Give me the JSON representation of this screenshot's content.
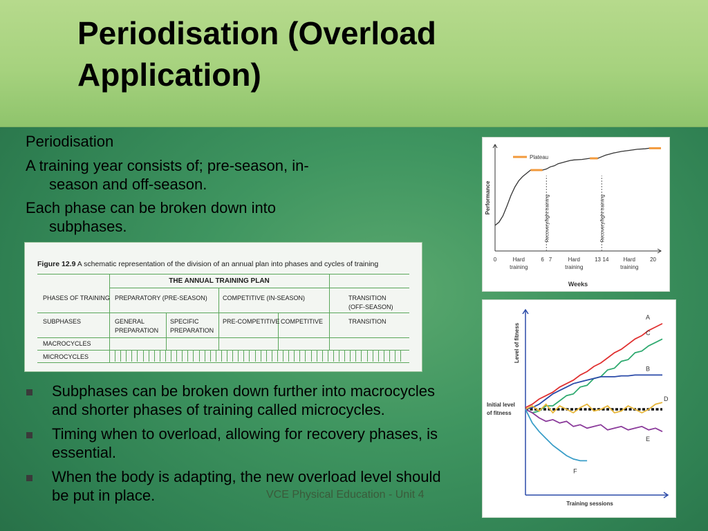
{
  "slide": {
    "title": "Periodisation (Overload Application)",
    "intro_heading": "Periodisation",
    "intro_points": [
      {
        "first": "A training year consists of; pre-season, in-",
        "second": "season and off-season."
      },
      {
        "first": "Each phase can be broken down into",
        "second": "subphases."
      }
    ],
    "bullets": [
      "Subphases can be broken down further into macrocycles and shorter phases of training called microcycles.",
      "Timing when to overload, allowing for recovery phases, is essential.",
      "When the body is adapting, the new overload level should be put in place."
    ],
    "footer": "VCE Physical Education - Unit 4"
  },
  "plan_figure": {
    "caption_label": "Figure 12.9",
    "caption_text": "A schematic representation of the division of an annual plan into phases and cycles of training",
    "table_title": "THE ANNUAL TRAINING PLAN",
    "rows": {
      "phases_label": "PHASES OF TRAINING",
      "subphases_label": "SUBPHASES",
      "macro_label": "MACROCYCLES",
      "micro_label": "MICROCYCLES"
    },
    "phases": {
      "preparatory": "PREPARATORY (PRE-SEASON)",
      "competitive": "COMPETITIVE (IN-SEASON)",
      "transition_1": "TRANSITION",
      "transition_2": "(OFF-SEASON)"
    },
    "subphases": {
      "general_1": "GENERAL",
      "general_2": "PREPARATION",
      "specific_1": "SPECIFIC",
      "specific_2": "PREPARATION",
      "pre_competitive": "PRE-COMPETITIVE",
      "competitive": "COMPETITIVE",
      "transition": "TRANSITION"
    }
  },
  "chart_data": [
    {
      "type": "line",
      "title": "",
      "xlabel": "Weeks",
      "ylabel": "Performance",
      "legend": [
        {
          "label": "Plateau",
          "color": "#f29a3c"
        }
      ],
      "x_ticks": [
        "0",
        "6",
        "7",
        "13",
        "14",
        "20"
      ],
      "xlim": [
        0,
        21
      ],
      "segment_labels": [
        {
          "text": "Hard training",
          "line1": "Hard",
          "line2": "training",
          "x": 3
        },
        {
          "text": "Hard training",
          "line1": "Hard",
          "line2": "training",
          "x": 10
        },
        {
          "text": "Hard training",
          "line1": "Hard",
          "line2": "training",
          "x": 17
        }
      ],
      "recovery_labels": [
        {
          "text": "Recovery/light training",
          "x": 6.5
        },
        {
          "text": "Recovery/light training",
          "x": 13.5
        }
      ],
      "plateaus": [
        [
          4.5,
          6
        ],
        [
          12,
          13
        ],
        [
          19.5,
          21
        ]
      ],
      "series": [
        {
          "values_x": [
            0,
            0.5,
            1,
            1.5,
            2,
            2.5,
            3,
            3.5,
            4,
            4.5,
            6,
            6.5,
            7,
            7.5,
            8,
            8.5,
            9,
            9.5,
            10,
            11,
            12,
            13,
            13.5,
            14,
            14.5,
            15,
            16,
            17,
            18,
            19,
            19.5,
            21
          ],
          "values_y": [
            0.24,
            0.27,
            0.33,
            0.42,
            0.52,
            0.6,
            0.66,
            0.7,
            0.73,
            0.76,
            0.76,
            0.77,
            0.79,
            0.8,
            0.82,
            0.83,
            0.84,
            0.85,
            0.855,
            0.86,
            0.87,
            0.87,
            0.885,
            0.9,
            0.91,
            0.92,
            0.935,
            0.945,
            0.955,
            0.96,
            0.965,
            0.965
          ],
          "color": "#333333"
        }
      ]
    },
    {
      "type": "line",
      "title": "",
      "xlabel": "Training sessions",
      "ylabel": "Level of fitness",
      "baseline_label": "Initial level of fitness",
      "baseline_line1": "Initial level",
      "baseline_line2": "of fitness",
      "xlim": [
        0,
        10
      ],
      "ylim": [
        0,
        10
      ],
      "series": [
        {
          "name": "A",
          "color": "#e03030",
          "x": [
            0,
            0.5,
            1,
            1.5,
            2,
            2.5,
            3,
            3.5,
            4,
            4.5,
            5,
            5.5,
            6,
            6.5,
            7,
            7.5,
            8,
            8.5,
            9,
            9.5,
            10
          ],
          "y": [
            5.1,
            5.3,
            5.6,
            5.8,
            6.0,
            6.3,
            6.5,
            6.7,
            7.0,
            7.2,
            7.5,
            7.7,
            8.0,
            8.3,
            8.5,
            8.8,
            9.1,
            9.3,
            9.6,
            9.8,
            10.0
          ]
        },
        {
          "name": "C",
          "color": "#2faa70",
          "x": [
            0,
            0.5,
            1,
            1.5,
            2,
            2.5,
            3,
            3.5,
            4,
            4.5,
            5,
            5.5,
            6,
            6.5,
            7,
            7.5,
            8,
            8.5,
            9,
            9.5,
            10
          ],
          "y": [
            5.0,
            4.8,
            4.9,
            5.2,
            5.2,
            5.5,
            5.8,
            5.9,
            6.3,
            6.4,
            6.8,
            6.9,
            7.3,
            7.4,
            7.8,
            7.9,
            8.3,
            8.4,
            8.7,
            8.9,
            9.1
          ]
        },
        {
          "name": "B",
          "color": "#2a4aa8",
          "x": [
            0,
            0.5,
            1,
            1.5,
            2,
            2.5,
            3,
            3.5,
            4,
            4.5,
            5,
            5.5,
            6,
            6.5,
            7,
            7.5,
            8,
            8.5,
            9,
            9.5,
            10
          ],
          "y": [
            5.0,
            5.1,
            5.3,
            5.6,
            5.9,
            6.1,
            6.3,
            6.5,
            6.6,
            6.7,
            6.8,
            6.9,
            6.9,
            6.9,
            6.95,
            6.95,
            7.0,
            7.0,
            7.0,
            7.0,
            7.0
          ]
        },
        {
          "name": "D",
          "color": "#e8b73a",
          "x": [
            0,
            0.5,
            1,
            1.5,
            2,
            2.5,
            3,
            3.5,
            4,
            4.5,
            5,
            5.5,
            6,
            6.5,
            7,
            7.5,
            8,
            8.5,
            9,
            9.5,
            10
          ],
          "y": [
            5.0,
            5.2,
            4.9,
            5.3,
            4.8,
            5.2,
            5.0,
            4.8,
            5.1,
            5.3,
            4.9,
            5.0,
            5.2,
            4.8,
            4.9,
            5.2,
            5.0,
            4.8,
            5.0,
            5.3,
            5.4
          ]
        },
        {
          "name": "E",
          "color": "#8a3a9a",
          "x": [
            0,
            0.5,
            1,
            1.5,
            2,
            2.5,
            3,
            3.5,
            4,
            4.5,
            5,
            5.5,
            6,
            6.5,
            7,
            7.5,
            8,
            8.5,
            9,
            9.5,
            10
          ],
          "y": [
            5.0,
            4.8,
            4.5,
            4.3,
            4.4,
            4.2,
            4.3,
            4.0,
            4.1,
            3.9,
            4.0,
            4.1,
            3.8,
            3.9,
            4.0,
            3.8,
            3.9,
            4.0,
            3.8,
            3.9,
            3.7
          ]
        },
        {
          "name": "F",
          "color": "#3a9ec8",
          "x": [
            0,
            0.5,
            1,
            1.5,
            2,
            2.5,
            3,
            3.5,
            4,
            4.5
          ],
          "y": [
            5.0,
            4.2,
            3.7,
            3.3,
            2.9,
            2.6,
            2.3,
            2.1,
            2.0,
            2.0
          ]
        }
      ]
    }
  ]
}
